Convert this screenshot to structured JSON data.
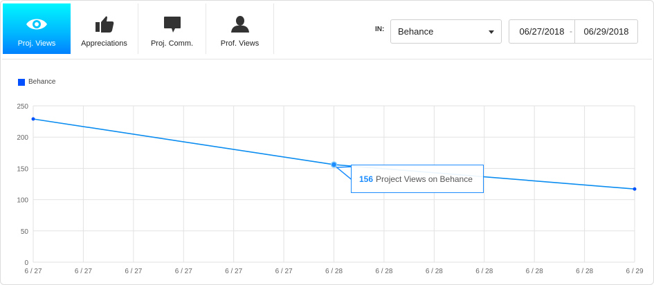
{
  "tabs": [
    {
      "label": "Proj. Views",
      "icon": "eye-icon",
      "active": true
    },
    {
      "label": "Appreciations",
      "icon": "thumbs-up-icon",
      "active": false
    },
    {
      "label": "Proj. Comm.",
      "icon": "comment-icon",
      "active": false
    },
    {
      "label": "Prof. Views",
      "icon": "user-icon",
      "active": false
    }
  ],
  "filter": {
    "in_label": "IN:",
    "source_value": "Behance",
    "date_start": "06/27/2018",
    "date_separator": "-",
    "date_end": "06/29/2018"
  },
  "colors": {
    "accent": "#00b6ff",
    "series": "#0a8cf0",
    "legend_swatch": "#0050ff",
    "grid": "#e2e2e2"
  },
  "tooltip": {
    "value": "156",
    "text": "Project Views on Behance"
  },
  "chart_data": {
    "type": "line",
    "title": "",
    "xlabel": "",
    "ylabel": "",
    "ylim": [
      0,
      250
    ],
    "y_ticks": [
      0,
      50,
      100,
      150,
      200,
      250
    ],
    "x_tick_labels": [
      "6 / 27",
      "6 / 27",
      "6 / 27",
      "6 / 27",
      "6 / 27",
      "6 / 27",
      "6 / 28",
      "6 / 28",
      "6 / 28",
      "6 / 28",
      "6 / 28",
      "6 / 28",
      "6 / 29"
    ],
    "grid": true,
    "legend_position": "top-left",
    "categories": [
      "6/27",
      "6/28",
      "6/29"
    ],
    "series": [
      {
        "name": "Behance",
        "values": [
          229,
          156,
          117
        ]
      }
    ],
    "annotations": [
      {
        "x": "6/28",
        "text": "156 Project Views on Behance"
      }
    ]
  }
}
